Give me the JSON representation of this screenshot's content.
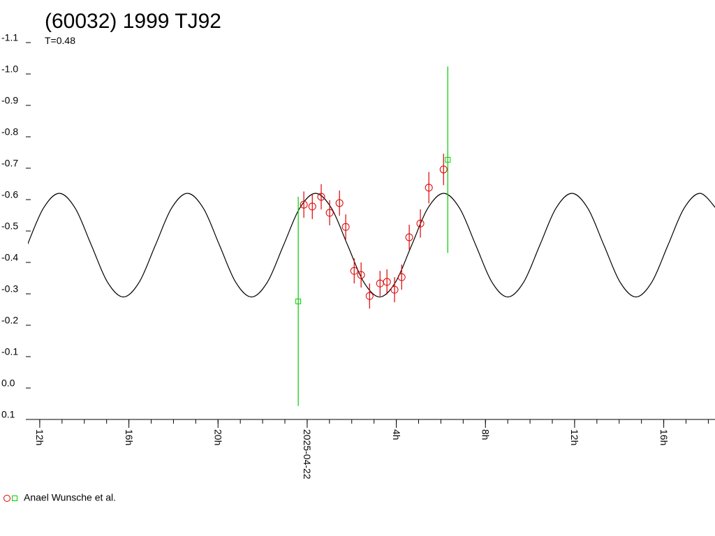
{
  "chart_data": {
    "type": "lightcurve",
    "title": "(60032) 1999 TJ92",
    "subtitle": "T=0.48",
    "xlim": [
      11.47,
      42.3
    ],
    "xticks": [
      {
        "value": 12,
        "label": "12h"
      },
      {
        "value": 16,
        "label": "16h"
      },
      {
        "value": 20,
        "label": "20h"
      },
      {
        "value": 24,
        "label": "2025-04-22"
      },
      {
        "value": 28,
        "label": "4h"
      },
      {
        "value": 32,
        "label": "8h"
      },
      {
        "value": 36,
        "label": "12h"
      },
      {
        "value": 40,
        "label": "16h"
      }
    ],
    "xminor": 1,
    "ylim": [
      -1.1,
      0.1
    ],
    "yinverted": true,
    "yticks": [
      -1.1,
      {
        "value": -1,
        "label": "-1.0"
      },
      -0.9,
      -0.8,
      -0.7,
      -0.6,
      -0.5,
      -0.4,
      -0.3,
      -0.2,
      -0.1,
      {
        "value": 0,
        "label": "0.0"
      },
      0.1
    ],
    "model": {
      "color": "#000000",
      "x": [
        11.44,
        12.159,
        12.878,
        13.596,
        14.315,
        15.034,
        15.753,
        16.471,
        17.19,
        17.909,
        18.628,
        19.346,
        20.065,
        20.784,
        21.503,
        22.221,
        22.94,
        23.659,
        24.378,
        25.096,
        25.815,
        26.534,
        27.253,
        27.971,
        28.69,
        29.409,
        30.128,
        30.846,
        31.565,
        32.284,
        33.003,
        33.721,
        34.44,
        35.159,
        35.878,
        36.596,
        37.315,
        38.034,
        38.753,
        39.471,
        40.19,
        40.909,
        41.628,
        42.346
      ],
      "values": [
        -0.455,
        -0.572,
        -0.62,
        -0.572,
        -0.455,
        -0.338,
        -0.29,
        -0.338,
        -0.455,
        -0.572,
        -0.62,
        -0.572,
        -0.455,
        -0.338,
        -0.29,
        -0.338,
        -0.455,
        -0.572,
        -0.62,
        -0.572,
        -0.455,
        -0.338,
        -0.29,
        -0.338,
        -0.455,
        -0.572,
        -0.62,
        -0.572,
        -0.455,
        -0.338,
        -0.29,
        -0.338,
        -0.455,
        -0.572,
        -0.62,
        -0.572,
        -0.455,
        -0.338,
        -0.29,
        -0.338,
        -0.455,
        -0.572,
        -0.62,
        -0.572
      ]
    },
    "series": [
      {
        "name": "Anael Wunsche et al.",
        "marker": "circle",
        "color": "#dd0000",
        "x": [
          23.85,
          24.23,
          24.63,
          25.01,
          25.45,
          25.73,
          26.11,
          26.42,
          26.8,
          27.27,
          27.58,
          27.92,
          28.24,
          28.58,
          29.08,
          29.46,
          30.12
        ],
        "values": [
          -0.584,
          -0.578,
          -0.609,
          -0.558,
          -0.589,
          -0.513,
          -0.373,
          -0.36,
          -0.293,
          -0.333,
          -0.338,
          -0.313,
          -0.353,
          -0.48,
          -0.524,
          -0.638,
          -0.696
        ],
        "errors": [
          0.042,
          0.04,
          0.04,
          0.04,
          0.04,
          0.04,
          0.04,
          0.04,
          0.04,
          0.04,
          0.04,
          0.04,
          0.04,
          0.04,
          0.045,
          0.05,
          0.05
        ]
      },
      {
        "marker": "square",
        "color": "#00cc00",
        "x": [
          23.6,
          30.31
        ],
        "values": [
          -0.276,
          -0.727
        ],
        "errors": [
          0.333,
          0.297
        ]
      }
    ]
  }
}
